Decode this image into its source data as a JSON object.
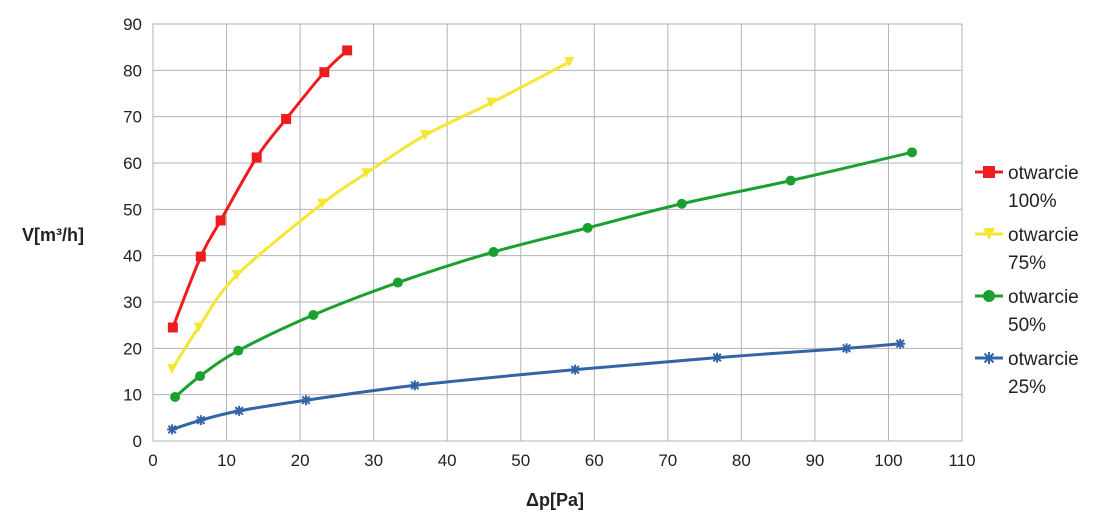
{
  "chart_data": {
    "type": "line",
    "title": "",
    "xlabel": "Δp[Pa]",
    "ylabel": "V[m³/h]",
    "xlim": [
      0,
      110
    ],
    "ylim": [
      0,
      90
    ],
    "x_ticks": [
      0,
      10,
      20,
      30,
      40,
      50,
      60,
      70,
      80,
      90,
      100,
      110
    ],
    "y_ticks": [
      0,
      10,
      20,
      30,
      40,
      50,
      60,
      70,
      80,
      90
    ],
    "grid": true,
    "legend": "right",
    "series": [
      {
        "name_lines": [
          "otwarcie",
          "100%"
        ],
        "color": "#ee1c1c",
        "marker": "square",
        "points": [
          [
            2.7,
            24.5
          ],
          [
            6.5,
            39.8
          ],
          [
            9.2,
            47.6
          ],
          [
            14.1,
            61.2
          ],
          [
            18.1,
            69.5
          ],
          [
            23.3,
            79.6
          ],
          [
            26.4,
            84.3
          ]
        ]
      },
      {
        "name_lines": [
          "otwarcie",
          "75%"
        ],
        "color": "#f5e633",
        "marker": "triangle-down",
        "points": [
          [
            2.6,
            15.5
          ],
          [
            6.2,
            24.5
          ],
          [
            11.4,
            35.8
          ],
          [
            23.0,
            51.2
          ],
          [
            29.0,
            57.8
          ],
          [
            37.0,
            66.0
          ],
          [
            46.0,
            73.0
          ],
          [
            56.6,
            81.8
          ]
        ]
      },
      {
        "name_lines": [
          "otwarcie",
          "50%"
        ],
        "color": "#1aa02e",
        "marker": "circle",
        "points": [
          [
            3.0,
            9.5
          ],
          [
            6.4,
            14.0
          ],
          [
            11.6,
            19.5
          ],
          [
            21.8,
            27.2
          ],
          [
            33.3,
            34.2
          ],
          [
            46.3,
            40.8
          ],
          [
            59.1,
            46.0
          ],
          [
            71.9,
            51.2
          ],
          [
            86.7,
            56.2
          ],
          [
            103.2,
            62.3
          ]
        ]
      },
      {
        "name_lines": [
          "otwarcie",
          "25%"
        ],
        "color": "#3464a8",
        "marker": "star",
        "points": [
          [
            2.6,
            2.5
          ],
          [
            6.5,
            4.5
          ],
          [
            11.7,
            6.5
          ],
          [
            20.8,
            8.8
          ],
          [
            35.6,
            12.0
          ],
          [
            57.4,
            15.4
          ],
          [
            76.7,
            18.0
          ],
          [
            94.3,
            20.0
          ],
          [
            101.6,
            21.0
          ]
        ]
      }
    ]
  }
}
